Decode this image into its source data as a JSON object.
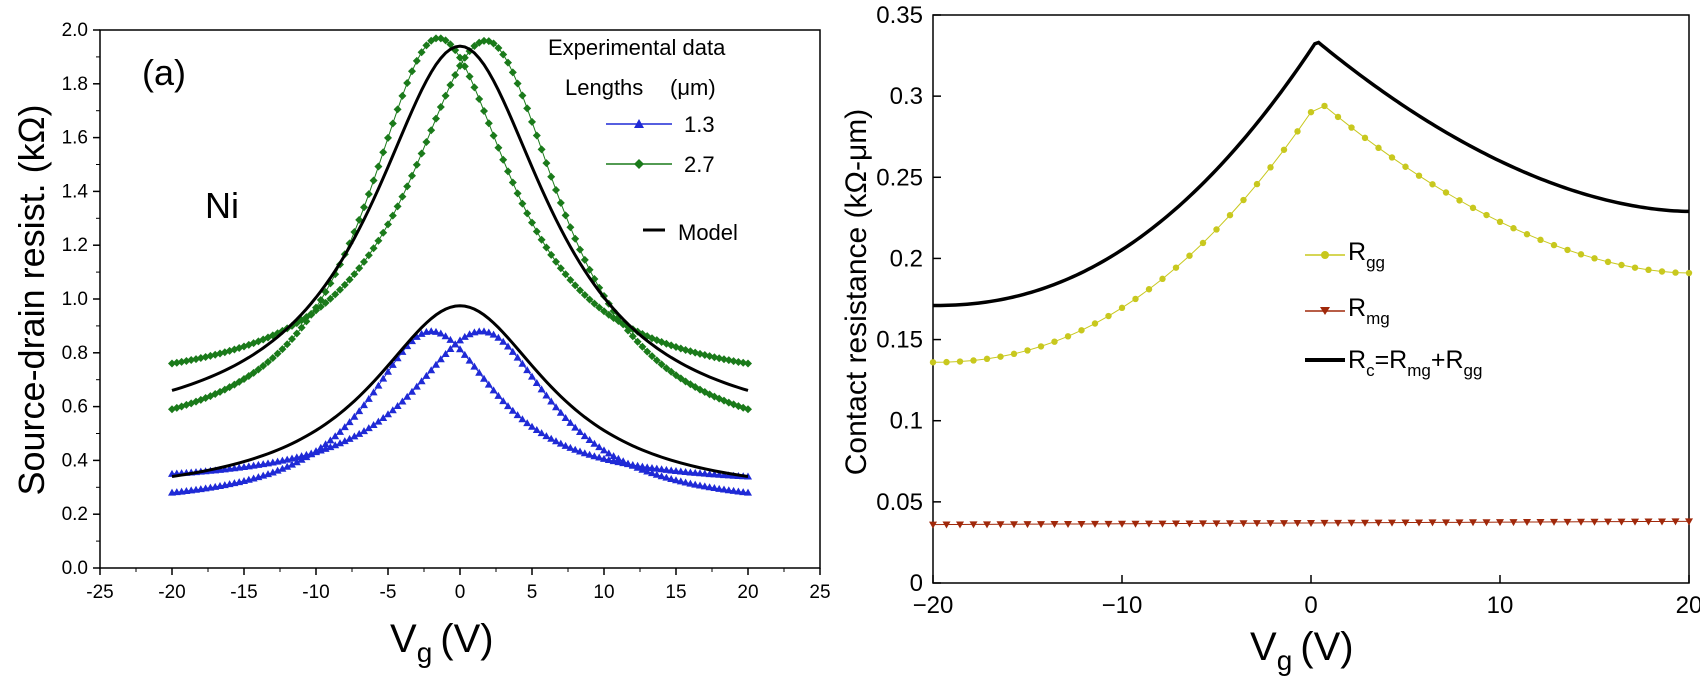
{
  "colors": {
    "blue": "#1f2ad6",
    "green": "#1a7a1a",
    "black": "#000000",
    "yellow": "#c8c81e",
    "brown": "#a0280a"
  },
  "chart_data": [
    {
      "type": "line",
      "panel_label": "(a)",
      "material_label": "Ni",
      "xlabel": {
        "main": "V",
        "sub": "g",
        "unit": "(V)"
      },
      "ylabel": "Source-drain resist. (kΩ)",
      "xlim": [
        -25,
        25
      ],
      "ylim": [
        0.0,
        2.0
      ],
      "xticks": [
        -25,
        -20,
        -15,
        -10,
        -5,
        0,
        5,
        10,
        15,
        20,
        25
      ],
      "yticks": [
        0.0,
        0.2,
        0.4,
        0.6,
        0.8,
        1.0,
        1.2,
        1.4,
        1.6,
        1.8,
        2.0
      ],
      "legend": {
        "title": "Experimental data",
        "subtitle": "Lengths",
        "subtitle_unit": "(μm)",
        "entries": [
          "1.3",
          "2.7"
        ],
        "model_label": "Model"
      },
      "series": [
        {
          "name": "1.3",
          "style": "triangle",
          "color": "blue",
          "forward": {
            "base": 0.28,
            "peak": 0.88,
            "v0": -2,
            "gamma": 5.5,
            "end": 0.34
          },
          "reverse": {
            "base": 0.35,
            "peak": 0.88,
            "v0": 1.5,
            "gamma": 6.0,
            "end": 0.28
          }
        },
        {
          "name": "2.7",
          "style": "diamond",
          "color": "green",
          "forward": {
            "base": 0.59,
            "peak": 1.97,
            "v0": -1.5,
            "gamma": 6.2,
            "end": 0.76
          },
          "reverse": {
            "base": 0.76,
            "peak": 1.96,
            "v0": 1.8,
            "gamma": 6.5,
            "end": 0.59
          }
        },
        {
          "name": "Model L=1.3",
          "style": "line",
          "color": "black",
          "forward": {
            "base": 0.34,
            "peak": 0.975,
            "v0": 0,
            "gamma": 7.5,
            "end": 0.34
          }
        },
        {
          "name": "Model L=2.7",
          "style": "line",
          "color": "black",
          "forward": {
            "base": 0.66,
            "peak": 1.94,
            "v0": 0,
            "gamma": 7.5,
            "end": 0.66
          }
        }
      ]
    },
    {
      "type": "line",
      "xlabel": {
        "main": "V",
        "sub": "g",
        "unit": "(V)"
      },
      "ylabel": "Contact resistance (kΩ-μm)",
      "xlim": [
        -20,
        20
      ],
      "ylim": [
        0,
        0.35
      ],
      "xticks": [
        -20,
        -10,
        0,
        10,
        20
      ],
      "yticks": [
        0,
        0.05,
        0.1,
        0.15,
        0.2,
        0.25,
        0.3,
        0.35
      ],
      "legend": [
        {
          "main": "R",
          "sub": "gg",
          "series": "Rgg"
        },
        {
          "main": "R",
          "sub": "mg",
          "series": "Rmg"
        },
        {
          "main": "R",
          "sub": "c",
          "mid": "=R",
          "sub2": "mg",
          "mid2": "+R",
          "sub3": "gg",
          "series": "Rc"
        }
      ],
      "series": [
        {
          "name": "Rgg",
          "color": "yellow",
          "style": "circle",
          "left_end": 0.136,
          "peak_x": 0.4,
          "peak_y": 0.297,
          "right_end": 0.191
        },
        {
          "name": "Rmg",
          "color": "brown",
          "style": "triangle-down",
          "left_end": 0.036,
          "right_end": 0.038
        },
        {
          "name": "Rc",
          "color": "black",
          "style": "line",
          "left_end": 0.171,
          "peak_x": 0.3,
          "peak_y": 0.334,
          "right_end": 0.229
        }
      ]
    }
  ]
}
